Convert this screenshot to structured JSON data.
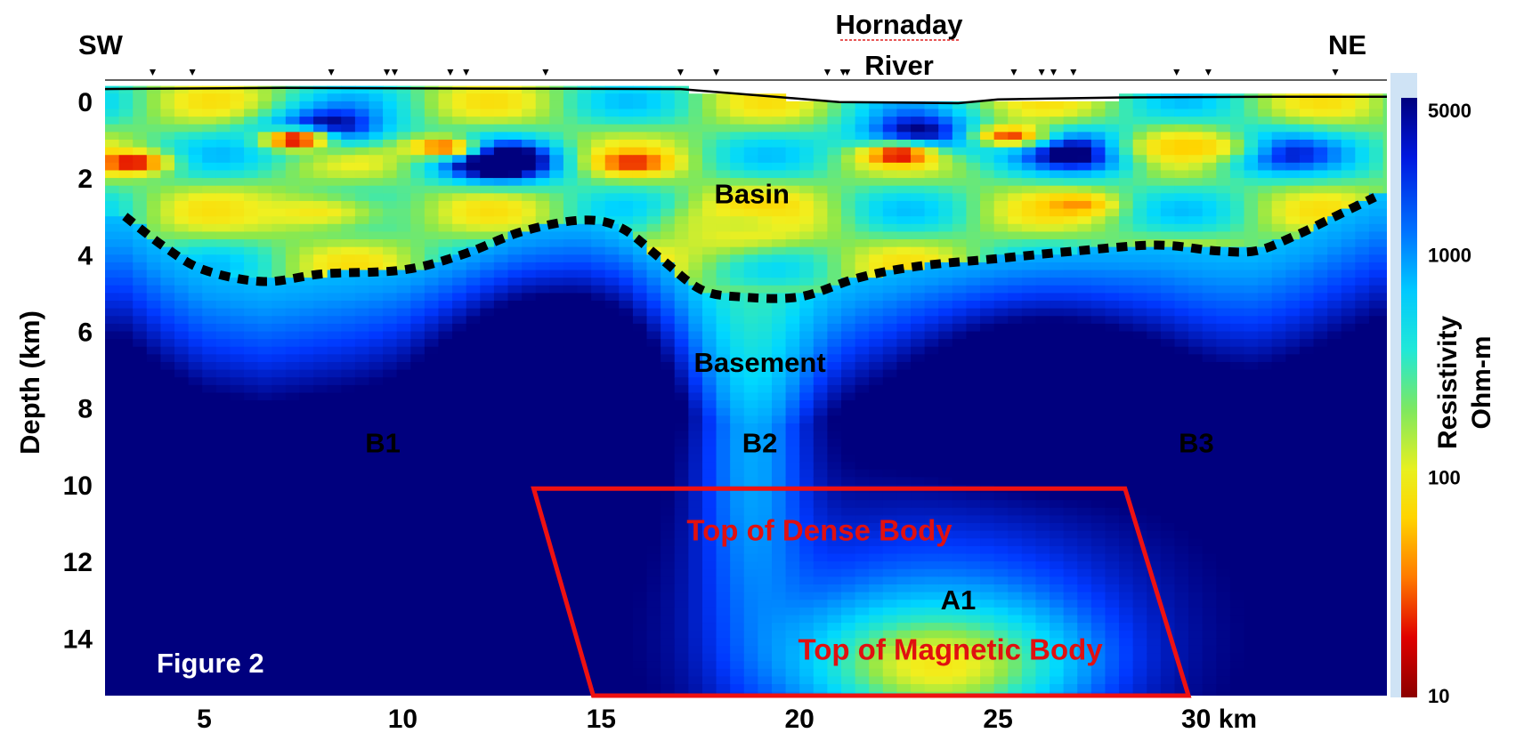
{
  "chart_data": {
    "type": "heatmap",
    "title": "",
    "figure_label": "Figure 2",
    "xlabel": "",
    "x_unit": "km",
    "xlim": [
      2.5,
      34.8
    ],
    "x_ticks": [
      5,
      10,
      15,
      20,
      25,
      30
    ],
    "x_tick_labels": [
      "5",
      "10",
      "15",
      "20",
      "25",
      "30 km"
    ],
    "ylabel": "Depth (km)",
    "ylim": [
      -0.6,
      15.5
    ],
    "y_inverted": true,
    "y_ticks": [
      0,
      2,
      4,
      6,
      8,
      10,
      12,
      14
    ],
    "y_tick_labels": [
      "0",
      "2",
      "4",
      "6",
      "8",
      "10",
      "12",
      "14"
    ],
    "colorbar": {
      "label_lines": [
        "Resistivity",
        "Ohm-m"
      ],
      "scale": "log",
      "range": [
        10,
        5000
      ],
      "ticks": [
        5000,
        1000,
        100,
        10
      ],
      "tick_labels": [
        "5000",
        "1000",
        "100",
        "10"
      ],
      "colors": [
        "#8b0000",
        "#e00000",
        "#ff7a00",
        "#ffd400",
        "#f0f020",
        "#8ee84a",
        "#2ee8c0",
        "#00d8ff",
        "#0098ff",
        "#0038ff",
        "#00007e"
      ]
    },
    "direction_labels": {
      "left": "SW",
      "right": "NE"
    },
    "river_label_lines": [
      "Hornaday",
      "River"
    ],
    "stations_km": [
      3.7,
      4.7,
      8.2,
      9.6,
      9.8,
      11.2,
      11.6,
      13.6,
      17.0,
      17.9,
      20.7,
      21.1,
      21.2,
      25.4,
      26.1,
      26.4,
      26.9,
      29.5,
      30.3,
      33.5
    ],
    "surface_profile": [
      [
        2.5,
        -0.32
      ],
      [
        7,
        -0.35
      ],
      [
        12,
        -0.33
      ],
      [
        17,
        -0.32
      ],
      [
        19,
        -0.15
      ],
      [
        21,
        0.02
      ],
      [
        24,
        0.05
      ],
      [
        25,
        -0.05
      ],
      [
        28,
        -0.1
      ],
      [
        32,
        -0.12
      ],
      [
        34.8,
        -0.12
      ]
    ],
    "basement_boundary": [
      [
        3.0,
        3.0
      ],
      [
        4.0,
        3.8
      ],
      [
        5.0,
        4.4
      ],
      [
        6.5,
        4.7
      ],
      [
        8.0,
        4.5
      ],
      [
        10.0,
        4.4
      ],
      [
        11.5,
        4.0
      ],
      [
        13.0,
        3.4
      ],
      [
        14.5,
        3.1
      ],
      [
        15.5,
        3.3
      ],
      [
        16.5,
        4.1
      ],
      [
        17.5,
        4.9
      ],
      [
        18.5,
        5.1
      ],
      [
        20.0,
        5.1
      ],
      [
        21.5,
        4.6
      ],
      [
        23.0,
        4.3
      ],
      [
        25.0,
        4.1
      ],
      [
        27.0,
        3.9
      ],
      [
        29.0,
        3.75
      ],
      [
        30.5,
        3.9
      ],
      [
        31.5,
        3.9
      ],
      [
        32.5,
        3.5
      ],
      [
        33.5,
        3.0
      ],
      [
        34.5,
        2.5
      ]
    ],
    "dense_body_outline": [
      [
        13.3,
        10.1
      ],
      [
        28.2,
        10.1
      ],
      [
        29.8,
        15.5
      ],
      [
        14.8,
        15.5
      ]
    ],
    "annotations": [
      {
        "text": "Basin",
        "x": 18.8,
        "y": 2.4
      },
      {
        "text": "Basement",
        "x": 19.0,
        "y": 6.8
      },
      {
        "text": "B1",
        "x": 9.5,
        "y": 8.9
      },
      {
        "text": "B2",
        "x": 19.0,
        "y": 8.9
      },
      {
        "text": "B3",
        "x": 30.0,
        "y": 8.9
      },
      {
        "text": "A1",
        "x": 24.0,
        "y": 13.0
      }
    ],
    "body_labels": [
      {
        "text": "Top of Dense Body",
        "x": 20.5,
        "y": 11.2,
        "color": "#e01010"
      },
      {
        "text": "Top of Magnetic Body",
        "x": 23.8,
        "y": 14.3,
        "color": "#e01010"
      }
    ],
    "resistivity_anomalies": [
      {
        "type": "low",
        "x": 3.2,
        "y": 1.6,
        "ohm_m": 15
      },
      {
        "type": "low",
        "x": 7.3,
        "y": 1.0,
        "ohm_m": 12
      },
      {
        "type": "low",
        "x": 11.0,
        "y": 1.2,
        "ohm_m": 25
      },
      {
        "type": "low",
        "x": 15.8,
        "y": 1.6,
        "ohm_m": 20
      },
      {
        "type": "low",
        "x": 22.5,
        "y": 1.4,
        "ohm_m": 15
      },
      {
        "type": "low",
        "x": 25.3,
        "y": 0.9,
        "ohm_m": 25
      },
      {
        "type": "low",
        "x": 27.0,
        "y": 2.7,
        "ohm_m": 40
      },
      {
        "type": "low",
        "x": 29.8,
        "y": 1.2,
        "ohm_m": 60
      },
      {
        "type": "low",
        "x": 7.8,
        "y": 2.9,
        "ohm_m": 100
      },
      {
        "type": "low",
        "x": 18.5,
        "y": 3.2,
        "ohm_m": 150
      },
      {
        "type": "low",
        "x": 23.5,
        "y": 14.7,
        "ohm_m": 100
      },
      {
        "type": "high",
        "x": 8.0,
        "y": 0.8,
        "ohm_m": 5000
      },
      {
        "type": "high",
        "x": 12.5,
        "y": 1.6,
        "ohm_m": 5000
      },
      {
        "type": "high",
        "x": 23.0,
        "y": 0.9,
        "ohm_m": 5000
      },
      {
        "type": "high",
        "x": 27.5,
        "y": 1.3,
        "ohm_m": 5000
      },
      {
        "type": "high",
        "x": 31.5,
        "y": 1.3,
        "ohm_m": 5000
      },
      {
        "type": "high",
        "x": 13.5,
        "y": 6.5,
        "ohm_m": 5000
      },
      {
        "type": "high",
        "x": 26.0,
        "y": 7.0,
        "ohm_m": 5000
      }
    ]
  }
}
